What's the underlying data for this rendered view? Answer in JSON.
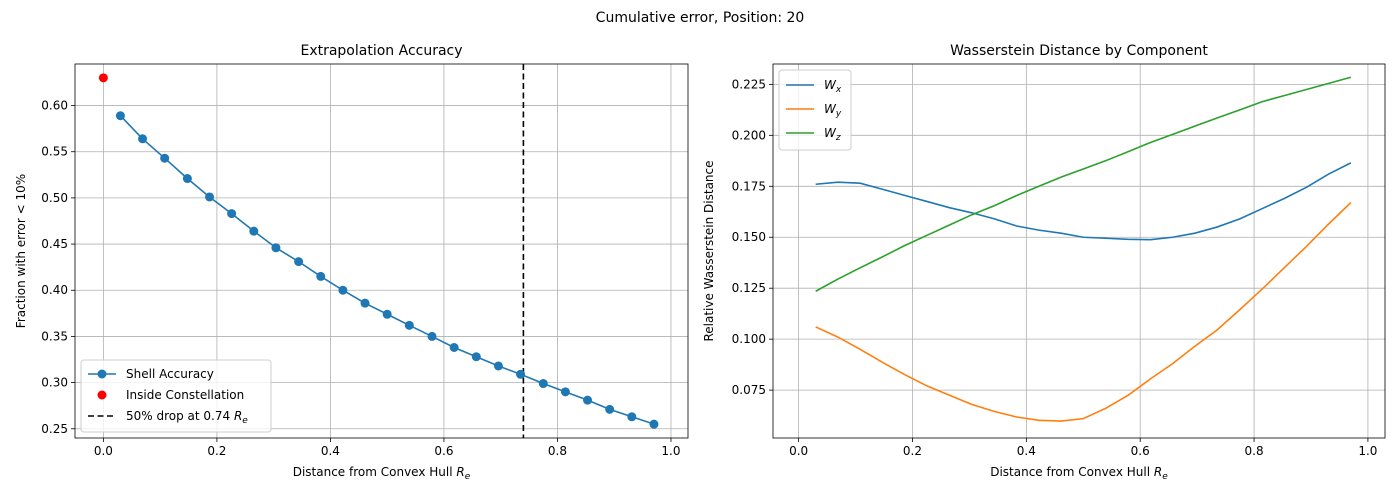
{
  "figure_title": "Cumulative error, Position: 20",
  "chart_data": [
    {
      "type": "line",
      "title": "Extrapolation Accuracy",
      "xlabel": "Distance from Convex Hull",
      "xlabel_var": "R",
      "xlabel_sub": "e",
      "ylabel": "Fraction with error < 10%",
      "xlim": [
        -0.05,
        1.03
      ],
      "ylim": [
        0.24,
        0.645
      ],
      "xticks": [
        0.0,
        0.2,
        0.4,
        0.6,
        0.8,
        1.0
      ],
      "xtick_labels": [
        "0.0",
        "0.2",
        "0.4",
        "0.6",
        "0.8",
        "1.0"
      ],
      "yticks": [
        0.25,
        0.3,
        0.35,
        0.4,
        0.45,
        0.5,
        0.55,
        0.6
      ],
      "ytick_labels": [
        "0.25",
        "0.30",
        "0.35",
        "0.40",
        "0.45",
        "0.50",
        "0.55",
        "0.60"
      ],
      "grid": true,
      "legend_position": "lower-left",
      "series": [
        {
          "name": "Shell Accuracy",
          "color": "#1f77b4",
          "marker": "circle",
          "x": [
            0.03,
            0.069,
            0.108,
            0.148,
            0.187,
            0.226,
            0.265,
            0.304,
            0.344,
            0.383,
            0.422,
            0.461,
            0.5,
            0.539,
            0.579,
            0.618,
            0.657,
            0.696,
            0.735,
            0.775,
            0.814,
            0.853,
            0.892,
            0.931,
            0.97
          ],
          "y": [
            0.589,
            0.564,
            0.543,
            0.521,
            0.501,
            0.483,
            0.464,
            0.446,
            0.431,
            0.415,
            0.4,
            0.386,
            0.374,
            0.362,
            0.35,
            0.338,
            0.328,
            0.318,
            0.309,
            0.299,
            0.29,
            0.281,
            0.271,
            0.263,
            0.255
          ]
        },
        {
          "name": "Inside Constellation",
          "color": "#ff0000",
          "marker": "circle",
          "x": [
            0.0
          ],
          "y": [
            0.63
          ]
        }
      ],
      "annotations": [
        {
          "name": "50% drop at 0.74",
          "label_var": "R",
          "label_sub": "e",
          "type": "vline",
          "style": "dashed",
          "color": "#000000",
          "x": 0.74
        }
      ]
    },
    {
      "type": "line",
      "title": "Wasserstein Distance by Component",
      "xlabel": "Distance from Convex Hull",
      "xlabel_var": "R",
      "xlabel_sub": "e",
      "ylabel": "Relative Wasserstein Distance",
      "xlim": [
        -0.045,
        1.03
      ],
      "ylim": [
        0.0515,
        0.235
      ],
      "xticks": [
        0.0,
        0.2,
        0.4,
        0.6,
        0.8,
        1.0
      ],
      "xtick_labels": [
        "0.0",
        "0.2",
        "0.4",
        "0.6",
        "0.8",
        "1.0"
      ],
      "yticks": [
        0.075,
        0.1,
        0.125,
        0.15,
        0.175,
        0.2,
        0.225
      ],
      "ytick_labels": [
        "0.075",
        "0.100",
        "0.125",
        "0.150",
        "0.175",
        "0.200",
        "0.225"
      ],
      "grid": true,
      "legend_position": "top-left",
      "x": [
        0.03,
        0.069,
        0.108,
        0.148,
        0.187,
        0.226,
        0.265,
        0.304,
        0.344,
        0.383,
        0.422,
        0.461,
        0.5,
        0.539,
        0.579,
        0.618,
        0.657,
        0.696,
        0.735,
        0.775,
        0.814,
        0.853,
        0.892,
        0.931,
        0.97
      ],
      "series": [
        {
          "name": "W",
          "sub": "x",
          "color": "#1f77b4",
          "values": [
            0.176,
            0.177,
            0.1765,
            0.1735,
            0.1705,
            0.1675,
            0.1645,
            0.162,
            0.159,
            0.1555,
            0.1535,
            0.152,
            0.15,
            0.1495,
            0.149,
            0.1488,
            0.15,
            0.152,
            0.155,
            0.159,
            0.164,
            0.169,
            0.1745,
            0.181,
            0.1865
          ]
        },
        {
          "name": "W",
          "sub": "y",
          "color": "#ff7f0e",
          "values": [
            0.106,
            0.101,
            0.095,
            0.0885,
            0.0825,
            0.077,
            0.0725,
            0.068,
            0.0645,
            0.0618,
            0.0602,
            0.0598,
            0.061,
            0.066,
            0.0725,
            0.0805,
            0.088,
            0.0965,
            0.1045,
            0.1145,
            0.1245,
            0.135,
            0.1455,
            0.1565,
            0.167
          ]
        },
        {
          "name": "W",
          "sub": "z",
          "color": "#2ca02c",
          "values": [
            0.1235,
            0.1295,
            0.135,
            0.1405,
            0.146,
            0.151,
            0.156,
            0.161,
            0.1655,
            0.1705,
            0.175,
            0.1795,
            0.1835,
            0.1875,
            0.192,
            0.1965,
            0.2005,
            0.2045,
            0.2085,
            0.2125,
            0.2165,
            0.2195,
            0.2225,
            0.2255,
            0.2285
          ]
        }
      ]
    }
  ]
}
